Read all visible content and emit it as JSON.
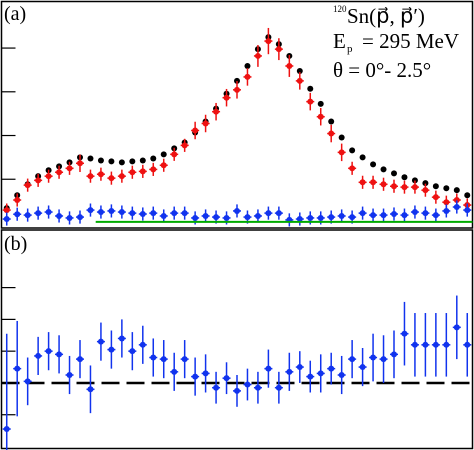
{
  "chart_data": [
    {
      "type": "scatter",
      "label": "(a)",
      "annotations": {
        "isotope_mass": "120",
        "reaction": "Sn(p⃗, p⃗′)",
        "energy_symbol": "E",
        "energy_subscript": "p",
        "energy_text": "= 295 MeV",
        "angle_text": "θ = 0°- 2.5°"
      },
      "x": [
        0,
        1,
        2,
        3,
        4,
        5,
        6,
        7,
        8,
        9,
        10,
        11,
        12,
        13,
        14,
        15,
        16,
        17,
        18,
        19,
        20,
        21,
        22,
        23,
        24,
        25,
        26,
        27,
        28,
        29,
        30,
        31,
        32,
        33,
        34,
        35,
        36,
        37,
        38,
        39,
        40,
        41,
        42,
        43,
        44
      ],
      "xlim": [
        -0.5,
        44.5
      ],
      "ylim": [
        -2.3,
        101.3
      ],
      "yticks": [
        20,
        40,
        60,
        80
      ],
      "series": [
        {
          "color": "#000000",
          "kind": "points",
          "values": [
            6.8,
            12.7,
            17.7,
            21.4,
            24.1,
            25.9,
            27.7,
            30.0,
            29.5,
            28.6,
            28.2,
            27.7,
            28.2,
            28.6,
            29.5,
            31.4,
            34.1,
            36.8,
            41.4,
            46.4,
            52.3,
            59.1,
            65.0,
            71.8,
            79.5,
            85.0,
            81.8,
            76.4,
            69.5,
            61.4,
            54.5,
            46.4,
            39.1,
            33.2,
            30.0,
            26.8,
            24.5,
            22.7,
            20.9,
            19.5,
            18.2,
            16.8,
            15.9,
            15.0,
            12.7
          ]
        },
        {
          "color": "#ee1111",
          "kind": "points",
          "values": [
            5.9,
            10.5,
            17.3,
            19.5,
            21.4,
            23.2,
            25.0,
            27.3,
            21.4,
            22.3,
            20.5,
            21.4,
            23.2,
            23.6,
            24.5,
            26.4,
            31.4,
            35.5,
            42.3,
            45.5,
            50.9,
            57.3,
            60.9,
            66.8,
            76.4,
            83.2,
            79.5,
            71.8,
            65.0,
            55.5,
            48.6,
            40.9,
            32.3,
            25.0,
            18.6,
            18.6,
            17.7,
            16.8,
            16.4,
            16.4,
            15.0,
            11.8,
            9.5,
            10.5,
            8.2
          ],
          "errors": [
            3,
            3,
            3,
            3,
            3,
            3,
            3,
            4,
            3,
            3,
            3,
            3,
            3,
            3,
            3,
            3,
            3,
            3,
            4,
            4,
            4,
            4,
            4,
            4,
            5,
            6,
            5,
            5,
            4,
            4,
            4,
            4,
            4,
            3,
            3,
            3,
            3,
            3,
            3,
            3,
            3,
            3,
            3,
            3,
            3
          ]
        },
        {
          "color": "#1133ee",
          "kind": "points",
          "values": [
            1.8,
            4.0,
            3.6,
            4.5,
            5.0,
            3.2,
            2.3,
            2.7,
            5.9,
            5.0,
            5.5,
            5.0,
            4.5,
            4.1,
            4.5,
            3.2,
            4.5,
            4.5,
            2.3,
            3.2,
            2.7,
            2.3,
            5.5,
            2.7,
            3.2,
            4.5,
            4.5,
            1.4,
            1.8,
            2.3,
            2.3,
            2.7,
            3.2,
            2.7,
            4.5,
            3.6,
            3.6,
            4.1,
            3.6,
            5.0,
            4.5,
            3.6,
            5.5,
            7.3,
            5.9
          ],
          "errors": [
            3,
            3,
            3,
            3,
            3,
            3,
            3,
            3,
            3,
            3,
            3,
            3,
            3,
            3,
            3,
            3,
            3,
            3,
            3,
            3,
            3,
            3,
            3,
            3,
            3,
            3,
            3,
            3,
            3,
            3,
            3,
            3,
            3,
            3,
            3,
            3,
            3,
            3,
            3,
            3,
            3,
            3,
            3,
            3,
            3
          ]
        },
        {
          "color": "#00aa00",
          "kind": "line",
          "x": [
            8.5,
            44.5
          ],
          "values": [
            0.5,
            0.5
          ]
        }
      ]
    },
    {
      "type": "scatter",
      "label": "(b)",
      "x": [
        0,
        1,
        2,
        3,
        4,
        5,
        6,
        7,
        8,
        9,
        10,
        11,
        12,
        13,
        14,
        15,
        16,
        17,
        18,
        19,
        20,
        21,
        22,
        23,
        24,
        25,
        26,
        27,
        28,
        29,
        30,
        31,
        32,
        33,
        34,
        35,
        36,
        37,
        38,
        39,
        40,
        41,
        42,
        43,
        44
      ],
      "xlim": [
        -0.5,
        44.5
      ],
      "ylim": [
        -0.4125,
        0.9625
      ],
      "yticks": [
        -0.2,
        0,
        0.2,
        0.4,
        0.6
      ],
      "reference_line": {
        "value": 0,
        "color": "#000000",
        "style": "dashed"
      },
      "series": [
        {
          "color": "#1133ee",
          "kind": "points",
          "values": [
            -0.29,
            0.09,
            0.01,
            0.17,
            0.2,
            0.18,
            0.05,
            0.15,
            -0.04,
            0.26,
            0.21,
            0.28,
            0.2,
            0.24,
            0.16,
            0.15,
            0.07,
            0.15,
            0.04,
            0.06,
            -0.03,
            0.03,
            -0.05,
            -0.01,
            -0.03,
            0.09,
            -0.03,
            0.07,
            0.1,
            0.04,
            0.06,
            0.09,
            0.05,
            0.15,
            0.1,
            0.16,
            0.15,
            0.18,
            0.31,
            0.24,
            0.24,
            0.24,
            0.24,
            0.35,
            0.24
          ],
          "errors": [
            0.6,
            0.3,
            0.15,
            0.12,
            0.12,
            0.12,
            0.12,
            0.12,
            0.15,
            0.12,
            0.12,
            0.12,
            0.12,
            0.12,
            0.12,
            0.12,
            0.12,
            0.12,
            0.12,
            0.12,
            0.1,
            0.1,
            0.1,
            0.1,
            0.1,
            0.12,
            0.1,
            0.12,
            0.1,
            0.1,
            0.12,
            0.1,
            0.12,
            0.12,
            0.12,
            0.15,
            0.15,
            0.15,
            0.2,
            0.2,
            0.2,
            0.2,
            0.2,
            0.2,
            0.2
          ]
        }
      ]
    }
  ]
}
